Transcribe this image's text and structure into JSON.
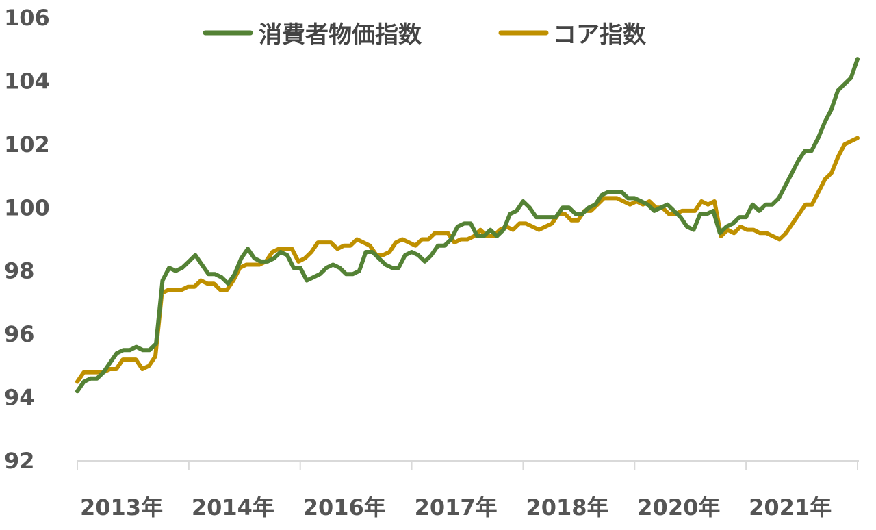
{
  "chart_data": {
    "type": "line",
    "title": "",
    "xlabel": "",
    "ylabel": "",
    "ylim": [
      92,
      106
    ],
    "y_ticks": [
      92,
      94,
      96,
      98,
      100,
      102,
      104,
      106
    ],
    "x_tick_labels": [
      "2013年",
      "2014年",
      "2016年",
      "2017年",
      "2018年",
      "2020年",
      "2021年"
    ],
    "grid": false,
    "legend_position": "top",
    "colors": {
      "cpi": "#548235",
      "core": "#BF9000",
      "axis": "#D9D9D9"
    },
    "series": [
      {
        "name": "消費者物価指数",
        "values": [
          94.2,
          94.5,
          94.6,
          94.6,
          94.8,
          95.1,
          95.4,
          95.5,
          95.5,
          95.6,
          95.5,
          95.5,
          95.7,
          97.7,
          98.1,
          98.0,
          98.1,
          98.3,
          98.5,
          98.2,
          97.9,
          97.9,
          97.8,
          97.6,
          97.9,
          98.4,
          98.7,
          98.4,
          98.3,
          98.3,
          98.4,
          98.6,
          98.5,
          98.1,
          98.1,
          97.7,
          97.8,
          97.9,
          98.1,
          98.2,
          98.1,
          97.9,
          97.9,
          98.0,
          98.6,
          98.6,
          98.4,
          98.2,
          98.1,
          98.1,
          98.5,
          98.6,
          98.5,
          98.3,
          98.5,
          98.8,
          98.8,
          99.0,
          99.4,
          99.5,
          99.5,
          99.1,
          99.1,
          99.3,
          99.1,
          99.3,
          99.8,
          99.9,
          100.2,
          100.0,
          99.7,
          99.7,
          99.7,
          99.7,
          100.0,
          100.0,
          99.8,
          99.8,
          100.0,
          100.1,
          100.4,
          100.5,
          100.5,
          100.5,
          100.3,
          100.3,
          100.2,
          100.1,
          99.9,
          100.0,
          100.1,
          99.9,
          99.7,
          99.4,
          99.3,
          99.8,
          99.8,
          99.9,
          99.2,
          99.4,
          99.5,
          99.7,
          99.7,
          100.1,
          99.9,
          100.1,
          100.1,
          100.3,
          100.7,
          101.1,
          101.5,
          101.8,
          101.8,
          102.2,
          102.7,
          103.1,
          103.7,
          103.9,
          104.1,
          104.7
        ]
      },
      {
        "name": "コア指数",
        "values": [
          94.5,
          94.8,
          94.8,
          94.8,
          94.8,
          94.9,
          94.9,
          95.2,
          95.2,
          95.2,
          94.9,
          95.0,
          95.3,
          97.3,
          97.4,
          97.4,
          97.4,
          97.5,
          97.5,
          97.7,
          97.6,
          97.6,
          97.4,
          97.4,
          97.7,
          98.1,
          98.2,
          98.2,
          98.2,
          98.3,
          98.6,
          98.7,
          98.7,
          98.7,
          98.3,
          98.4,
          98.6,
          98.9,
          98.9,
          98.9,
          98.7,
          98.8,
          98.8,
          99.0,
          98.9,
          98.8,
          98.5,
          98.5,
          98.6,
          98.9,
          99.0,
          98.9,
          98.8,
          99.0,
          99.0,
          99.2,
          99.2,
          99.2,
          98.9,
          99.0,
          99.0,
          99.1,
          99.3,
          99.1,
          99.1,
          99.3,
          99.4,
          99.3,
          99.5,
          99.5,
          99.4,
          99.3,
          99.4,
          99.5,
          99.8,
          99.8,
          99.6,
          99.6,
          99.9,
          99.9,
          100.1,
          100.3,
          100.3,
          100.3,
          100.2,
          100.1,
          100.2,
          100.1,
          100.2,
          100.0,
          100.0,
          99.8,
          99.8,
          99.9,
          99.9,
          99.9,
          100.2,
          100.1,
          100.2,
          99.1,
          99.3,
          99.2,
          99.4,
          99.3,
          99.3,
          99.2,
          99.2,
          99.1,
          99.0,
          99.2,
          99.5,
          99.8,
          100.1,
          100.1,
          100.5,
          100.9,
          101.1,
          101.6,
          102.0,
          102.1,
          102.2
        ]
      }
    ]
  }
}
